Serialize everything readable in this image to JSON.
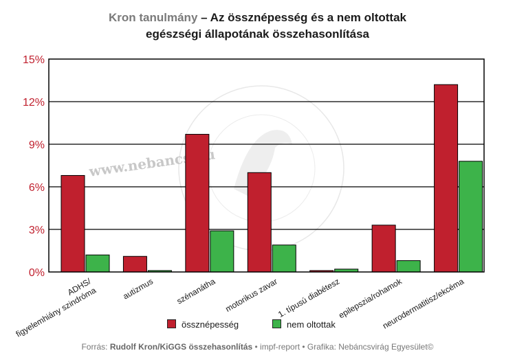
{
  "title": {
    "lead": "Kron tanulmány",
    "rest": " – Az össznépesség és a nem oltottak",
    "line2": "egészségi állapotának összehasonlítása"
  },
  "watermark": {
    "url": "www.nebancs.hu",
    "seal_text": "NEBÁNCSVIRÁG EGYESÜLET"
  },
  "colors": {
    "osszNepesseg": "#c0202e",
    "nemOltottak": "#3db34a",
    "axis_label": "#c0202e"
  },
  "chart_data": {
    "type": "bar",
    "categories": [
      "ADHS/ figyelemhiány szindróma",
      "autizmus",
      "szénanátha",
      "motorikus zavar",
      "1. típusú diabétesz",
      "epilepszia/rohamok",
      "neurodermatitisz/ekcéma"
    ],
    "category_lines": [
      [
        "ADHS/",
        "figyelemhiány szindróma"
      ],
      [
        "autizmus"
      ],
      [
        "szénanátha"
      ],
      [
        "motorikus zavar"
      ],
      [
        "1. típusú diabétesz"
      ],
      [
        "epilepszia/rohamok"
      ],
      [
        "neurodermatitisz/ekcéma"
      ]
    ],
    "series": [
      {
        "name": "össznépesség",
        "color": "#c0202e",
        "values": [
          6.8,
          1.1,
          9.7,
          7.0,
          0.1,
          3.3,
          13.2
        ]
      },
      {
        "name": "nem oltottak",
        "color": "#3db34a",
        "values": [
          1.2,
          0.1,
          2.9,
          1.9,
          0.2,
          0.8,
          7.8
        ]
      }
    ],
    "ylim": [
      0,
      15
    ],
    "yticks": [
      0,
      3,
      6,
      9,
      12,
      15
    ],
    "ytick_labels": [
      "0%",
      "3%",
      "6%",
      "9%",
      "12%",
      "15%"
    ],
    "grid": true,
    "legend_position": "bottom"
  },
  "legend": [
    {
      "label": "össznépesség"
    },
    {
      "label": "nem oltottak"
    }
  ],
  "footer": {
    "prefix": "Forrás: ",
    "source": "Rudolf Kron/KiGGS összehasonlítás",
    "suffix": " • impf-report • Grafika: Nebáncsvirág Egyesület©"
  }
}
